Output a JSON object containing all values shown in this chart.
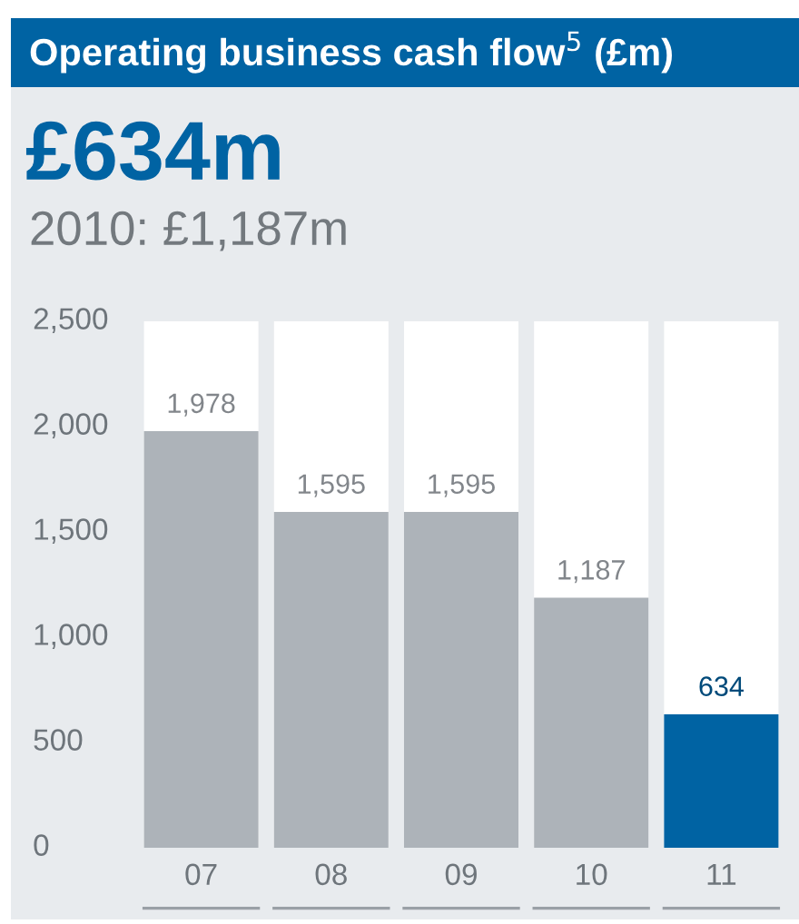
{
  "chart_data": {
    "type": "bar",
    "title": "Operating business cash flow$^{5}$ (£m)",
    "subtitle": "£634m",
    "annotations": [
      "2010: £1,187m"
    ],
    "categories": [
      "07",
      "08",
      "09",
      "10",
      "11"
    ],
    "values": [
      1978,
      1595,
      1595,
      1187,
      634
    ],
    "colors": [
      "#adb3b9",
      "#adb3b9",
      "#adb3b9",
      "#adb3b9",
      "#0063a3"
    ],
    "value_labels": [
      "1,978",
      "1,595",
      "1,595",
      "1,187",
      "634"
    ],
    "ylim": [
      0,
      2500
    ],
    "yticks": [
      {
        "value": 0,
        "label": "0"
      },
      {
        "value": 500,
        "label": "500"
      },
      {
        "value": 1000,
        "label": "1,000"
      },
      {
        "value": 1500,
        "label": "1,500"
      },
      {
        "value": 2000,
        "label": "2,000"
      },
      {
        "value": 2500,
        "label": "2,500"
      }
    ],
    "orientation": "vertical"
  }
}
